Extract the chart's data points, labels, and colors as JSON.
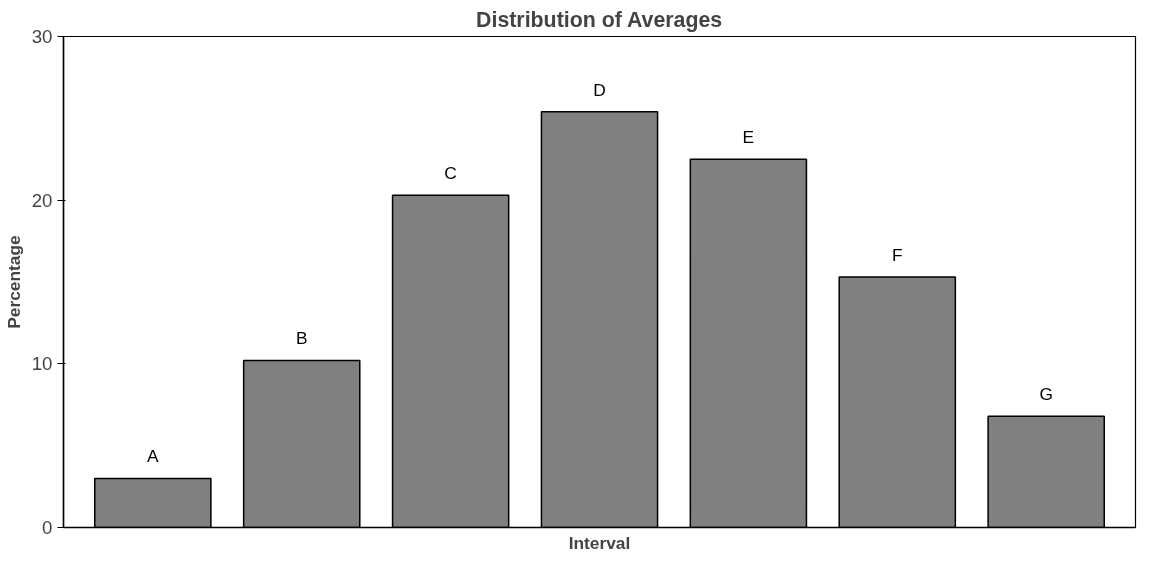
{
  "chart_data": {
    "type": "bar",
    "title": "Distribution of Averages",
    "xlabel": "Interval",
    "ylabel": "Percentage",
    "categories": [
      "A",
      "B",
      "C",
      "D",
      "E",
      "F",
      "G"
    ],
    "values": [
      3.0,
      10.2,
      20.3,
      25.4,
      22.5,
      15.3,
      6.8
    ],
    "color": "#808080",
    "ylim": [
      0,
      30
    ],
    "yticks": [
      0,
      10,
      20,
      30
    ],
    "grid": false
  }
}
